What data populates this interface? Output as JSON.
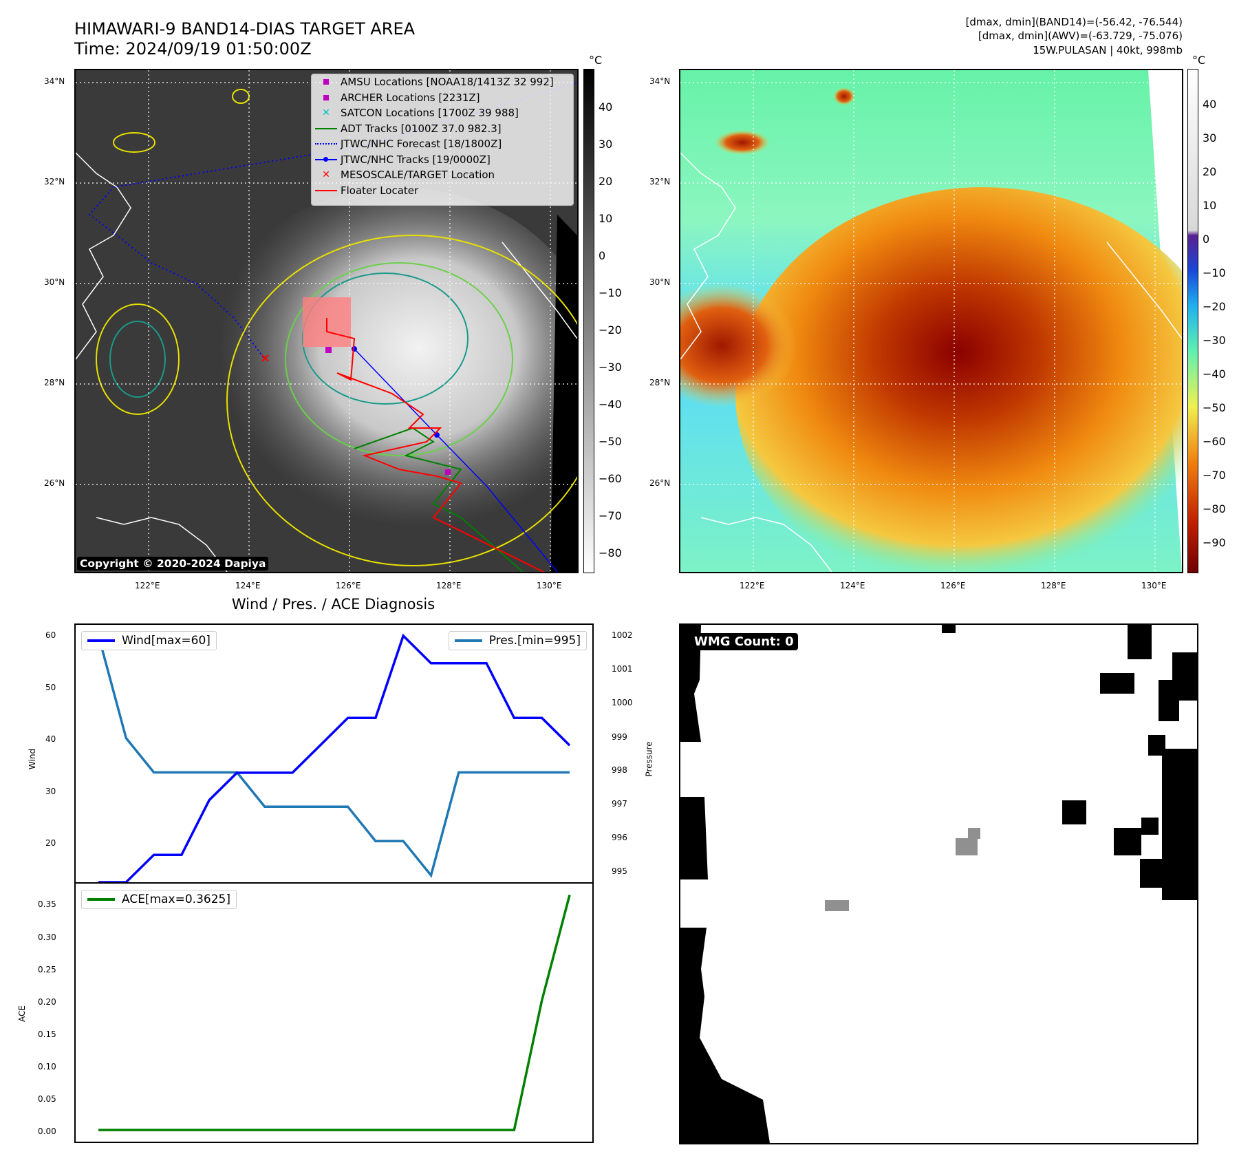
{
  "header": {
    "title": "HIMAWARI-9 BAND14-DIAS TARGET AREA",
    "time": "Time: 2024/09/19 01:50:00Z",
    "info_line1": "[dmax, dmin](BAND14)=(-56.42, -76.544)",
    "info_line2": "[dmax, dmin](AWV)=(-63.729, -75.076)",
    "info_line3": "15W.PULASAN | 40kt, 998mb"
  },
  "map": {
    "lat_labels": [
      "34°N",
      "32°N",
      "30°N",
      "28°N",
      "26°N"
    ],
    "lon_labels": [
      "122°E",
      "124°E",
      "126°E",
      "128°E",
      "130°E"
    ],
    "copyright": "Copyright © 2020-2024 Dapiya"
  },
  "legend": {
    "items": [
      {
        "label": "AMSU Locations [NOAA18/1413Z 32 992]",
        "symbol": "square",
        "color": "#c000c0"
      },
      {
        "label": "ARCHER Locations [2231Z]",
        "symbol": "square",
        "color": "#c000c0"
      },
      {
        "label": "SATCON Locations [1700Z 39 988]",
        "symbol": "x",
        "color": "#00c0c0"
      },
      {
        "label": "ADT Tracks [0100Z 37.0 982.3]",
        "symbol": "line",
        "color": "#008000"
      },
      {
        "label": "JTWC/NHC Forecast [18/1800Z]",
        "symbol": "dotted",
        "color": "#0000ff"
      },
      {
        "label": "JTWC/NHC Tracks [19/0000Z]",
        "symbol": "line-dot",
        "color": "#0000ff"
      },
      {
        "label": "MESOSCALE/TARGET Location",
        "symbol": "x",
        "color": "#ff0000"
      },
      {
        "label": "Floater Locater",
        "symbol": "line",
        "color": "#ff0000"
      }
    ]
  },
  "colorbar_gray": {
    "unit": "°C",
    "ticks": [
      "40",
      "30",
      "20",
      "10",
      "0",
      "−10",
      "−20",
      "−30",
      "−40",
      "−50",
      "−60",
      "−70",
      "−80"
    ]
  },
  "colorbar_color": {
    "unit": "°C",
    "ticks": [
      "40",
      "30",
      "20",
      "10",
      "0",
      "−10",
      "−20",
      "−30",
      "−40",
      "−50",
      "−60",
      "−70",
      "−80",
      "−90"
    ]
  },
  "diagnosis": {
    "title": "Wind / Pres. / ACE Diagnosis",
    "wind_axis_label": "Wind",
    "pres_axis_label": "Pressure",
    "ace_axis_label": "ACE",
    "wind_legend": "Wind[max=60]",
    "pres_legend": "Pres.[min=995]",
    "ace_legend": "ACE[max=0.3625]",
    "wind_ticks": [
      "60",
      "50",
      "40",
      "30",
      "20"
    ],
    "pres_ticks": [
      "1002",
      "1001",
      "1000",
      "999",
      "998",
      "997",
      "996",
      "995"
    ],
    "ace_ticks": [
      "0.35",
      "0.30",
      "0.25",
      "0.20",
      "0.15",
      "0.10",
      "0.05",
      "0.00"
    ]
  },
  "wmg": {
    "label": "WMG Count: 0"
  },
  "chart_data": [
    {
      "type": "line",
      "series": [
        {
          "name": "Wind[max=60]",
          "color": "#0000ff",
          "values": [
            15,
            15,
            20,
            20,
            30,
            35,
            35,
            35,
            40,
            45,
            45,
            60,
            55,
            55,
            55,
            45,
            45,
            40
          ]
        },
        {
          "name": "Pres.[min=995]",
          "color": "#1f77b4",
          "values": [
            1002,
            999,
            998,
            998,
            998,
            998,
            997,
            997,
            997,
            997,
            996,
            996,
            995,
            998,
            998,
            998,
            998,
            998
          ]
        }
      ],
      "ylabel": "Wind",
      "ylim": [
        15,
        62
      ],
      "y2label": "Pressure",
      "y2lim": [
        994.8,
        1002.3
      ]
    },
    {
      "type": "line",
      "series": [
        {
          "name": "ACE[max=0.3625]",
          "color": "#008000",
          "values": [
            0,
            0,
            0,
            0,
            0,
            0,
            0,
            0,
            0,
            0,
            0,
            0,
            0,
            0,
            0,
            0,
            0.2,
            0.3625
          ]
        }
      ],
      "ylabel": "ACE",
      "ylim": [
        -0.018,
        0.38
      ]
    }
  ]
}
